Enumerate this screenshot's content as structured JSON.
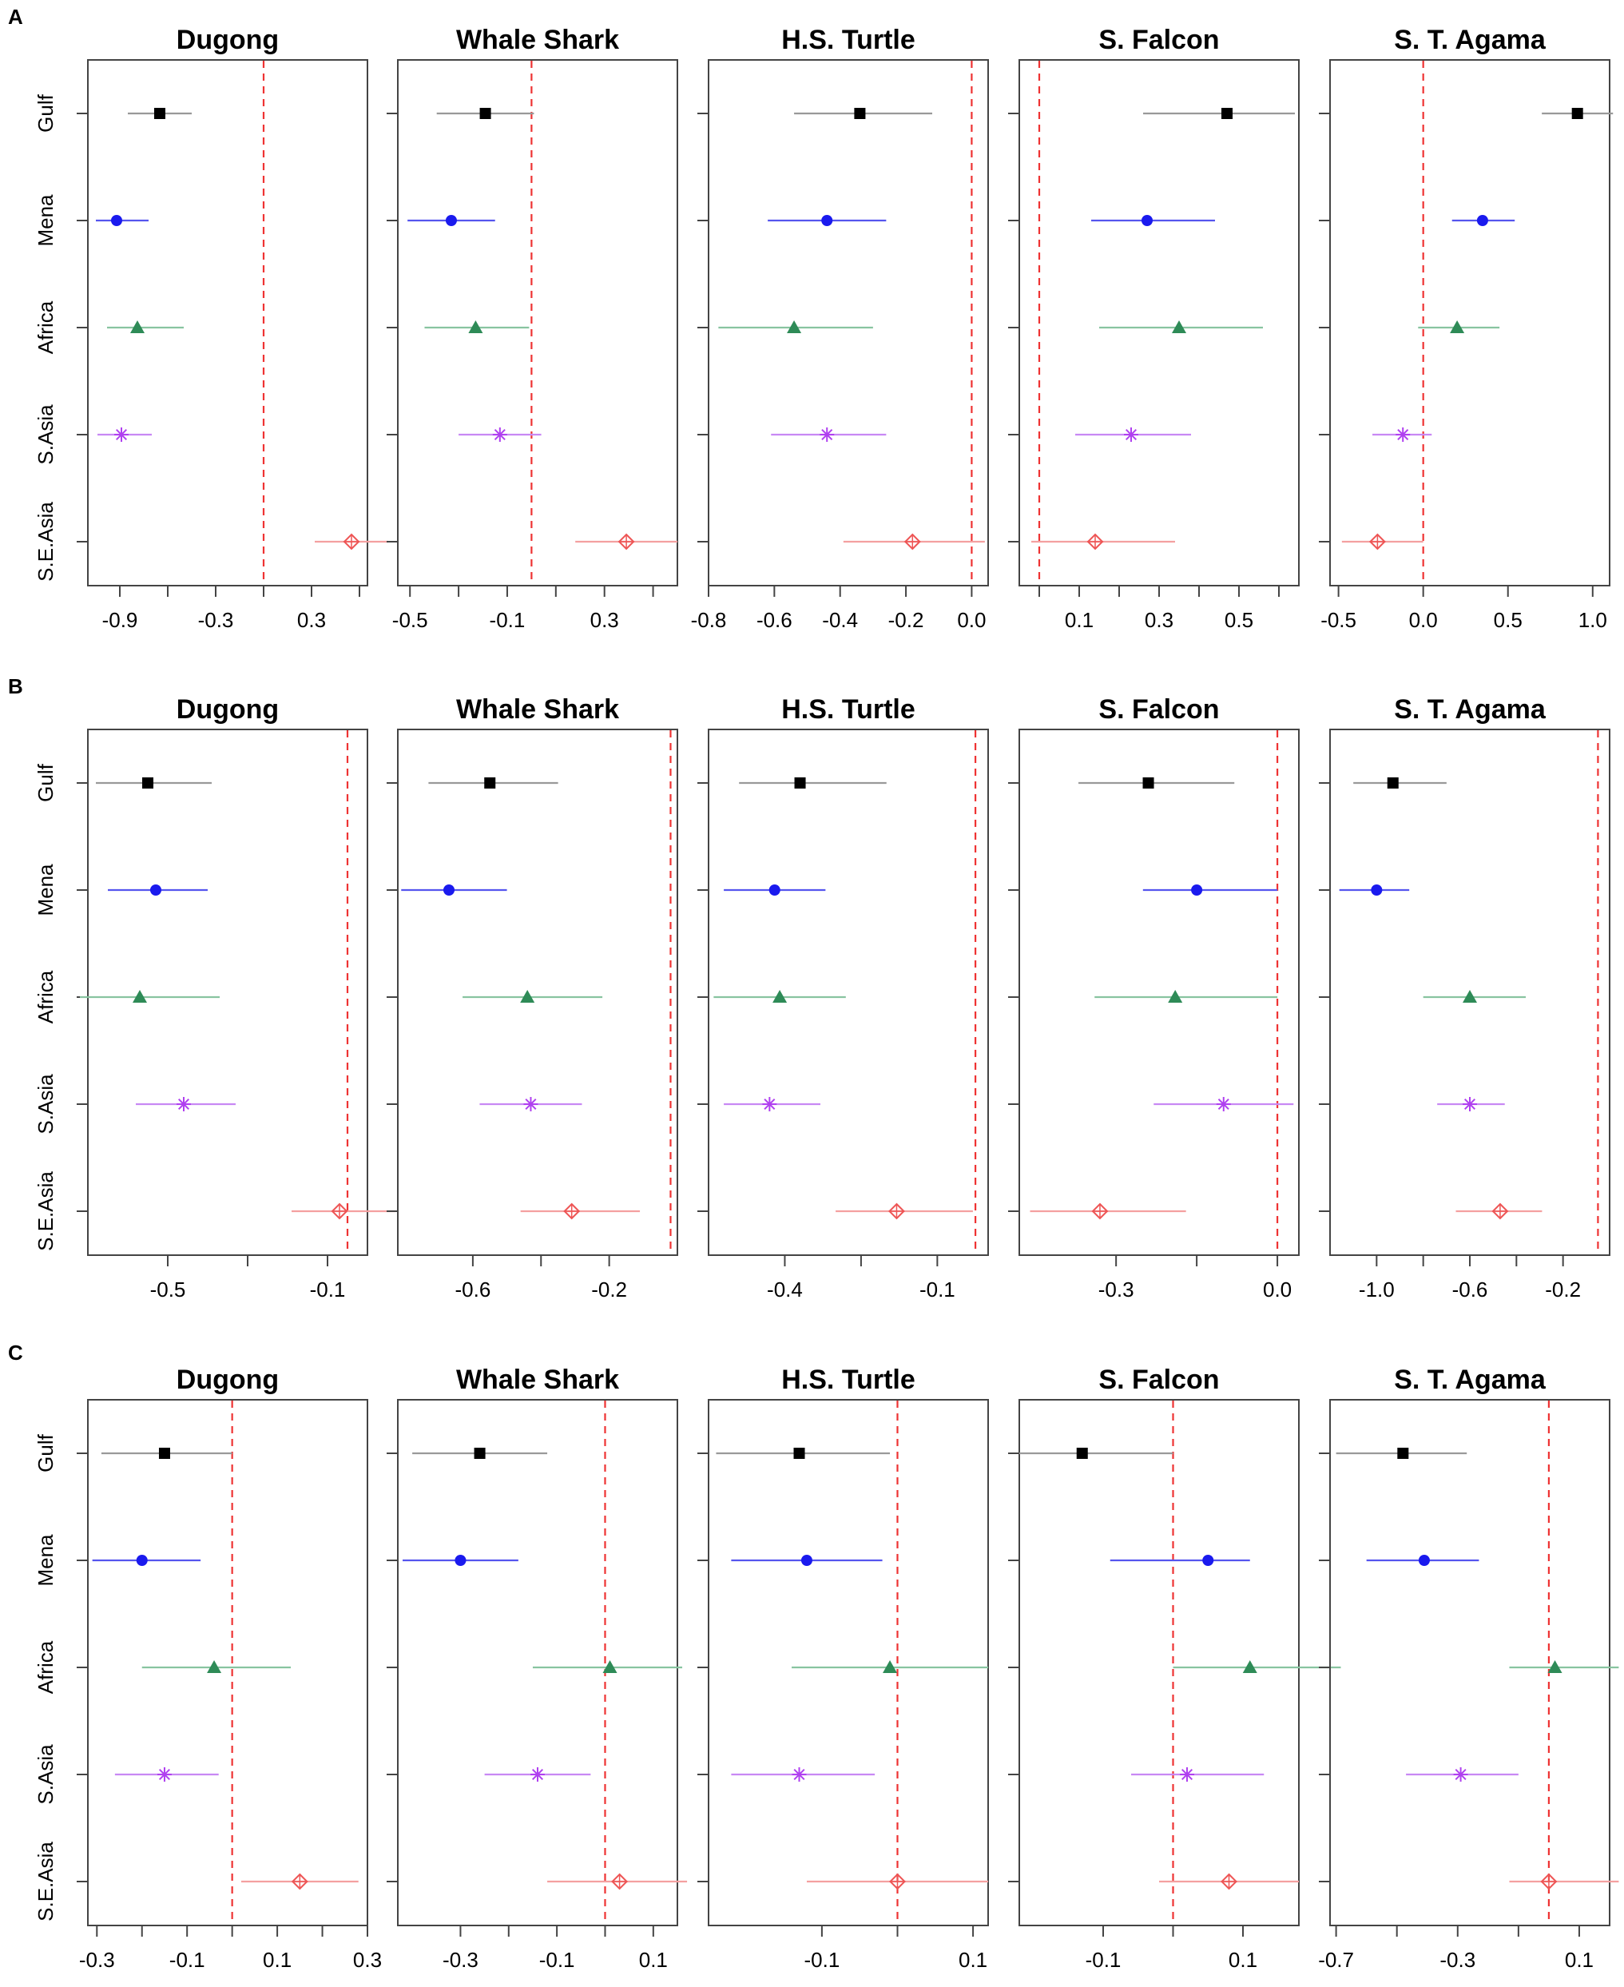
{
  "figure": {
    "species": [
      "Dugong",
      "Whale Shark",
      "H.S. Turtle",
      "S. Falcon",
      "S. T. Agama"
    ],
    "regions": [
      "Gulf",
      "Mena",
      "Africa",
      "S.Asia",
      "S.E.Asia"
    ],
    "region_colors": [
      "#000000",
      "#1a1aee",
      "#2e8b57",
      "#b040f0",
      "#ee5555"
    ],
    "region_line_colors": [
      "#999999",
      "#5555ee",
      "#88c4a0",
      "#c888f4",
      "#f4a0a0"
    ],
    "region_markers": [
      "square",
      "circle",
      "triangle",
      "asterisk",
      "diamond"
    ],
    "reference_line_color": "#ee3333"
  },
  "chart_data": [
    {
      "type": "forest",
      "panel_label": "A",
      "facets": [
        {
          "title": "Dugong",
          "xlim": [
            -1.1,
            0.65
          ],
          "ticks": [
            -0.9,
            -0.3,
            0.3
          ],
          "tick_labels": [
            "-0.9",
            "-0.3",
            "0.3"
          ],
          "extra_ticks": [
            -0.6,
            0.0,
            0.6
          ],
          "ref": 0.0,
          "points": [
            {
              "est": -0.65,
              "lo": -0.85,
              "hi": -0.45
            },
            {
              "est": -0.92,
              "lo": -1.05,
              "hi": -0.72
            },
            {
              "est": -0.79,
              "lo": -0.98,
              "hi": -0.5
            },
            {
              "est": -0.89,
              "lo": -1.04,
              "hi": -0.7
            },
            {
              "est": 0.55,
              "lo": 0.32,
              "hi": 0.78
            }
          ]
        },
        {
          "title": "Whale Shark",
          "xlim": [
            -0.55,
            0.6
          ],
          "ticks": [
            -0.5,
            -0.1,
            0.3
          ],
          "tick_labels": [
            "-0.5",
            "-0.1",
            "0.3"
          ],
          "extra_ticks": [
            -0.3,
            0.1,
            0.5
          ],
          "ref": 0.0,
          "points": [
            {
              "est": -0.19,
              "lo": -0.39,
              "hi": 0.01
            },
            {
              "est": -0.33,
              "lo": -0.51,
              "hi": -0.15
            },
            {
              "est": -0.23,
              "lo": -0.44,
              "hi": -0.01
            },
            {
              "est": -0.13,
              "lo": -0.3,
              "hi": 0.04
            },
            {
              "est": 0.39,
              "lo": 0.18,
              "hi": 0.6
            }
          ]
        },
        {
          "title": "H.S. Turtle",
          "xlim": [
            -0.8,
            0.05
          ],
          "ticks": [
            -0.8,
            -0.6,
            -0.4,
            -0.2,
            0.0
          ],
          "tick_labels": [
            "-0.8",
            "-0.6",
            "-0.4",
            "-0.2",
            "0.0"
          ],
          "extra_ticks": [],
          "ref": 0.0,
          "points": [
            {
              "est": -0.34,
              "lo": -0.54,
              "hi": -0.12
            },
            {
              "est": -0.44,
              "lo": -0.62,
              "hi": -0.26
            },
            {
              "est": -0.54,
              "lo": -0.77,
              "hi": -0.3
            },
            {
              "est": -0.44,
              "lo": -0.61,
              "hi": -0.26
            },
            {
              "est": -0.18,
              "lo": -0.39,
              "hi": 0.04
            }
          ]
        },
        {
          "title": "S. Falcon",
          "xlim": [
            -0.05,
            0.65
          ],
          "ticks": [
            0.1,
            0.3,
            0.5
          ],
          "tick_labels": [
            "0.1",
            "0.3",
            "0.5"
          ],
          "extra_ticks": [
            0.0,
            0.2,
            0.4,
            0.6
          ],
          "ref": 0.0,
          "points": [
            {
              "est": 0.47,
              "lo": 0.26,
              "hi": 0.64
            },
            {
              "est": 0.27,
              "lo": 0.13,
              "hi": 0.44
            },
            {
              "est": 0.35,
              "lo": 0.15,
              "hi": 0.56
            },
            {
              "est": 0.23,
              "lo": 0.09,
              "hi": 0.38
            },
            {
              "est": 0.14,
              "lo": -0.02,
              "hi": 0.34
            }
          ]
        },
        {
          "title": "S. T. Agama",
          "xlim": [
            -0.55,
            1.1
          ],
          "ticks": [
            -0.5,
            0.0,
            0.5,
            1.0
          ],
          "tick_labels": [
            "-0.5",
            "0.0",
            "0.5",
            "1.0"
          ],
          "extra_ticks": [],
          "ref": 0.0,
          "points": [
            {
              "est": 0.91,
              "lo": 0.7,
              "hi": 1.12
            },
            {
              "est": 0.35,
              "lo": 0.17,
              "hi": 0.54
            },
            {
              "est": 0.2,
              "lo": -0.03,
              "hi": 0.45
            },
            {
              "est": -0.12,
              "lo": -0.3,
              "hi": 0.05
            },
            {
              "est": -0.27,
              "lo": -0.48,
              "hi": 0.0
            }
          ]
        }
      ]
    },
    {
      "type": "forest",
      "panel_label": "B",
      "facets": [
        {
          "title": "Dugong",
          "xlim": [
            -0.7,
            0.0
          ],
          "ticks": [
            -0.5,
            -0.1
          ],
          "tick_labels": [
            "-0.5",
            "-0.1"
          ],
          "extra_ticks": [
            -0.3
          ],
          "ref": -0.05,
          "points": [
            {
              "est": -0.55,
              "lo": -0.68,
              "hi": -0.39
            },
            {
              "est": -0.53,
              "lo": -0.65,
              "hi": -0.4
            },
            {
              "est": -0.57,
              "lo": -0.72,
              "hi": -0.37
            },
            {
              "est": -0.46,
              "lo": -0.58,
              "hi": -0.33
            },
            {
              "est": -0.07,
              "lo": -0.19,
              "hi": 0.07
            }
          ]
        },
        {
          "title": "Whale Shark",
          "xlim": [
            -0.82,
            0.0
          ],
          "ticks": [
            -0.6,
            -0.2
          ],
          "tick_labels": [
            "-0.6",
            "-0.2"
          ],
          "extra_ticks": [
            -0.4
          ],
          "ref": -0.02,
          "points": [
            {
              "est": -0.55,
              "lo": -0.73,
              "hi": -0.35
            },
            {
              "est": -0.67,
              "lo": -0.81,
              "hi": -0.5
            },
            {
              "est": -0.44,
              "lo": -0.63,
              "hi": -0.22
            },
            {
              "est": -0.43,
              "lo": -0.58,
              "hi": -0.28
            },
            {
              "est": -0.31,
              "lo": -0.46,
              "hi": -0.11
            }
          ]
        },
        {
          "title": "H.S. Turtle",
          "xlim": [
            -0.55,
            0.0
          ],
          "ticks": [
            -0.4,
            -0.1
          ],
          "tick_labels": [
            "-0.4",
            "-0.1"
          ],
          "extra_ticks": [
            -0.25
          ],
          "ref": -0.025,
          "points": [
            {
              "est": -0.37,
              "lo": -0.49,
              "hi": -0.2
            },
            {
              "est": -0.42,
              "lo": -0.52,
              "hi": -0.32
            },
            {
              "est": -0.41,
              "lo": -0.54,
              "hi": -0.28
            },
            {
              "est": -0.43,
              "lo": -0.52,
              "hi": -0.33
            },
            {
              "est": -0.18,
              "lo": -0.3,
              "hi": -0.03
            }
          ]
        },
        {
          "title": "S. Falcon",
          "xlim": [
            -0.48,
            0.04
          ],
          "ticks": [
            -0.3,
            0.0
          ],
          "tick_labels": [
            "-0.3",
            "0.0"
          ],
          "extra_ticks": [
            -0.15
          ],
          "ref": 0.0,
          "points": [
            {
              "est": -0.24,
              "lo": -0.37,
              "hi": -0.08
            },
            {
              "est": -0.15,
              "lo": -0.25,
              "hi": 0.0
            },
            {
              "est": -0.19,
              "lo": -0.34,
              "hi": 0.0
            },
            {
              "est": -0.1,
              "lo": -0.23,
              "hi": 0.03
            },
            {
              "est": -0.33,
              "lo": -0.46,
              "hi": -0.17
            }
          ]
        },
        {
          "title": "S. T. Agama",
          "xlim": [
            -1.2,
            0.0
          ],
          "ticks": [
            -1.0,
            -0.6,
            -0.2
          ],
          "tick_labels": [
            "-1.0",
            "-0.6",
            "-0.2"
          ],
          "extra_ticks": [
            -0.8,
            -0.4
          ],
          "ref": -0.05,
          "points": [
            {
              "est": -0.93,
              "lo": -1.1,
              "hi": -0.7
            },
            {
              "est": -1.0,
              "lo": -1.16,
              "hi": -0.86
            },
            {
              "est": -0.6,
              "lo": -0.8,
              "hi": -0.36
            },
            {
              "est": -0.6,
              "lo": -0.74,
              "hi": -0.45
            },
            {
              "est": -0.47,
              "lo": -0.66,
              "hi": -0.29
            }
          ]
        }
      ]
    },
    {
      "type": "forest",
      "panel_label": "C",
      "facets": [
        {
          "title": "Dugong",
          "xlim": [
            -0.32,
            0.3
          ],
          "ticks": [
            -0.3,
            -0.1,
            0.1,
            0.3
          ],
          "tick_labels": [
            "-0.3",
            "-0.1",
            "0.1",
            "0.3"
          ],
          "extra_ticks": [
            -0.2,
            0.0,
            0.2
          ],
          "ref": 0.0,
          "points": [
            {
              "est": -0.15,
              "lo": -0.29,
              "hi": 0.0
            },
            {
              "est": -0.2,
              "lo": -0.31,
              "hi": -0.07
            },
            {
              "est": -0.04,
              "lo": -0.2,
              "hi": 0.13
            },
            {
              "est": -0.15,
              "lo": -0.26,
              "hi": -0.03
            },
            {
              "est": 0.15,
              "lo": 0.02,
              "hi": 0.28
            }
          ]
        },
        {
          "title": "Whale Shark",
          "xlim": [
            -0.43,
            0.15
          ],
          "ticks": [
            -0.3,
            -0.1,
            0.1
          ],
          "tick_labels": [
            "-0.3",
            "-0.1",
            "0.1"
          ],
          "extra_ticks": [
            -0.2,
            0.0
          ],
          "ref": 0.0,
          "points": [
            {
              "est": -0.26,
              "lo": -0.4,
              "hi": -0.12
            },
            {
              "est": -0.3,
              "lo": -0.42,
              "hi": -0.18
            },
            {
              "est": 0.01,
              "lo": -0.15,
              "hi": 0.16
            },
            {
              "est": -0.14,
              "lo": -0.25,
              "hi": -0.03
            },
            {
              "est": 0.03,
              "lo": -0.12,
              "hi": 0.17
            }
          ]
        },
        {
          "title": "H.S. Turtle",
          "xlim": [
            -0.25,
            0.12
          ],
          "ticks": [
            -0.1,
            0.1
          ],
          "tick_labels": [
            "-0.1",
            "0.1"
          ],
          "extra_ticks": [
            0.0
          ],
          "ref": 0.0,
          "points": [
            {
              "est": -0.13,
              "lo": -0.24,
              "hi": -0.01
            },
            {
              "est": -0.12,
              "lo": -0.22,
              "hi": -0.02
            },
            {
              "est": -0.01,
              "lo": -0.14,
              "hi": 0.12
            },
            {
              "est": -0.13,
              "lo": -0.22,
              "hi": -0.03
            },
            {
              "est": 0.0,
              "lo": -0.12,
              "hi": 0.12
            }
          ]
        },
        {
          "title": "S. Falcon",
          "xlim": [
            -0.22,
            0.18
          ],
          "ticks": [
            -0.1,
            0.1
          ],
          "tick_labels": [
            "-0.1",
            "0.1"
          ],
          "extra_ticks": [
            0.0
          ],
          "ref": 0.0,
          "points": [
            {
              "est": -0.13,
              "lo": -0.22,
              "hi": -0.0
            },
            {
              "est": 0.05,
              "lo": -0.09,
              "hi": 0.11
            },
            {
              "est": 0.11,
              "lo": 0.0,
              "hi": 0.24
            },
            {
              "est": 0.02,
              "lo": -0.06,
              "hi": 0.13
            },
            {
              "est": 0.08,
              "lo": -0.02,
              "hi": 0.18
            }
          ]
        },
        {
          "title": "S. T. Agama",
          "xlim": [
            -0.72,
            0.2
          ],
          "ticks": [
            -0.7,
            -0.3,
            0.1
          ],
          "tick_labels": [
            "-0.7",
            "-0.3",
            "0.1"
          ],
          "extra_ticks": [
            -0.5,
            -0.1
          ],
          "ref": 0.0,
          "points": [
            {
              "est": -0.48,
              "lo": -0.7,
              "hi": -0.27
            },
            {
              "est": -0.41,
              "lo": -0.6,
              "hi": -0.23
            },
            {
              "est": 0.02,
              "lo": -0.13,
              "hi": 0.23
            },
            {
              "est": -0.29,
              "lo": -0.47,
              "hi": -0.1
            },
            {
              "est": 0.0,
              "lo": -0.13,
              "hi": 0.23
            }
          ]
        }
      ]
    }
  ]
}
